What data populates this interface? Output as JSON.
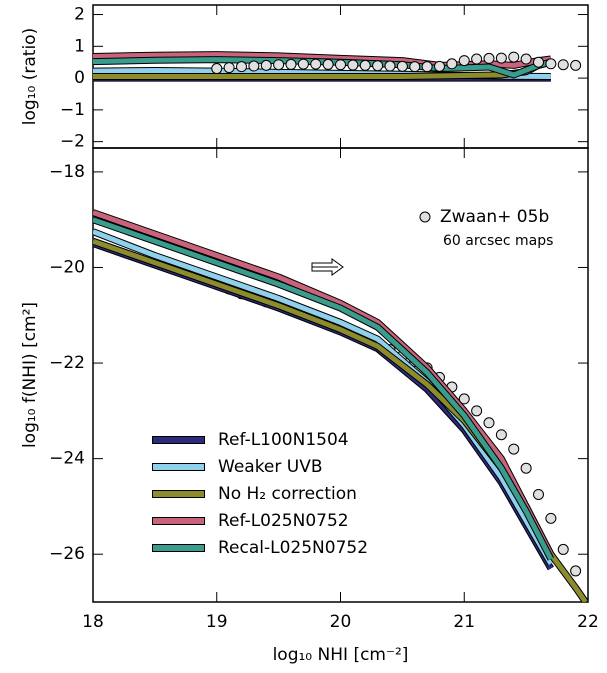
{
  "chart_data": [
    {
      "type": "line",
      "ylabel": "log₁₀ (ratio)",
      "xlim": [
        18,
        22
      ],
      "xticks": [
        18,
        19,
        20,
        21,
        22
      ],
      "ylim": [
        -2.2,
        2.3
      ],
      "yticks": [
        {
          "value": -2,
          "label": "−2"
        },
        {
          "value": -1,
          "label": "−1"
        },
        0,
        1,
        2
      ],
      "series": [
        {
          "color": "#2b2a7c",
          "x": [
            18,
            19,
            20,
            21,
            21.7
          ],
          "values": [
            0,
            0,
            0,
            0,
            0
          ]
        },
        {
          "color": "#8fd0ec",
          "x": [
            18,
            18.5,
            19,
            19.5,
            20,
            20.5,
            21,
            21.3,
            21.7
          ],
          "values": [
            0.22,
            0.24,
            0.22,
            0.18,
            0.15,
            0.12,
            0.08,
            0.06,
            0.05
          ]
        },
        {
          "color": "#8c8c2c",
          "x": [
            18,
            19,
            20,
            20.5,
            21,
            21.3,
            21.5,
            21.6,
            21.7
          ],
          "values": [
            0.05,
            0.05,
            0.05,
            0.05,
            0.08,
            0.1,
            0.2,
            0.4,
            0.5
          ]
        },
        {
          "color": "#c9637c",
          "x": [
            18,
            18.5,
            19,
            19.5,
            20,
            20.5,
            20.8,
            21,
            21.2,
            21.4,
            21.6,
            21.7
          ],
          "values": [
            0.68,
            0.72,
            0.74,
            0.7,
            0.62,
            0.55,
            0.4,
            0.42,
            0.45,
            0.4,
            0.55,
            0.6
          ]
        },
        {
          "color": "#3a9c8c",
          "x": [
            18,
            18.5,
            19,
            19.5,
            20,
            20.5,
            20.8,
            21,
            21.2,
            21.4,
            21.6,
            21.7
          ],
          "values": [
            0.52,
            0.56,
            0.58,
            0.55,
            0.5,
            0.42,
            0.3,
            0.32,
            0.35,
            0.1,
            0.4,
            0.5
          ]
        },
        {
          "color": "#e0e0e0",
          "marker": "circle",
          "x": [
            19,
            19.1,
            19.2,
            19.3,
            19.4,
            19.5,
            19.6,
            19.7,
            19.8,
            19.9,
            20,
            20.1,
            20.2,
            20.3,
            20.4,
            20.5,
            20.6,
            20.7,
            20.8,
            20.9,
            21,
            21.1,
            21.2,
            21.3,
            21.4,
            21.5,
            21.6,
            21.7,
            21.8,
            21.9
          ],
          "values": [
            0.3,
            0.33,
            0.36,
            0.38,
            0.4,
            0.42,
            0.43,
            0.44,
            0.44,
            0.43,
            0.42,
            0.41,
            0.4,
            0.39,
            0.38,
            0.37,
            0.36,
            0.36,
            0.37,
            0.45,
            0.55,
            0.6,
            0.62,
            0.63,
            0.66,
            0.6,
            0.5,
            0.45,
            0.42,
            0.4
          ]
        }
      ]
    },
    {
      "type": "line",
      "xlabel": "log₁₀ NHI [cm⁻²]",
      "ylabel": "log₁₀ f(NHI) [cm²]",
      "annotation": "60 arcsec maps",
      "legend": "lower left",
      "xlim": [
        18,
        22
      ],
      "xticks": [
        18,
        19,
        20,
        21,
        22
      ],
      "ylim": [
        -27,
        -17.5
      ],
      "yticks": [
        {
          "value": -26,
          "label": "−26"
        },
        {
          "value": -24,
          "label": "−24"
        },
        {
          "value": -22,
          "label": "−22"
        },
        {
          "value": -20,
          "label": "−20"
        },
        {
          "value": -18,
          "label": "−18"
        }
      ],
      "series": [
        {
          "name": "Zwaan+ 05b",
          "color": "#e0e0e0",
          "marker": "circle",
          "x": [
            19,
            19.1,
            19.2,
            19.3,
            19.4,
            19.5,
            19.6,
            19.7,
            19.8,
            19.9,
            20,
            20.1,
            20.2,
            20.3,
            20.4,
            20.5,
            20.6,
            20.7,
            20.8,
            20.9,
            21,
            21.1,
            21.2,
            21.3,
            21.4,
            21.5,
            21.6,
            21.7,
            21.8,
            21.9
          ],
          "values": [
            -20.35,
            -20.45,
            -20.55,
            -20.62,
            -20.72,
            -20.8,
            -20.9,
            -21.0,
            -21.1,
            -21.2,
            -21.3,
            -21.4,
            -21.5,
            -21.6,
            -21.72,
            -21.85,
            -21.97,
            -22.1,
            -22.3,
            -22.5,
            -22.75,
            -23.0,
            -23.25,
            -23.5,
            -23.8,
            -24.2,
            -24.75,
            -25.25,
            -25.9,
            -26.35
          ]
        },
        {
          "name": "Ref-L100N1504",
          "color": "#2b2a7c",
          "x": [
            18,
            18.5,
            19,
            19.5,
            20,
            20.3,
            20.7,
            21,
            21.3,
            21.5,
            21.7
          ],
          "values": [
            -19.5,
            -19.95,
            -20.4,
            -20.85,
            -21.35,
            -21.7,
            -22.55,
            -23.4,
            -24.5,
            -25.4,
            -26.3
          ]
        },
        {
          "name": "Weaker UVB",
          "color": "#8fd0ec",
          "x": [
            18,
            18.5,
            19,
            19.5,
            20,
            20.3,
            20.7,
            21,
            21.3,
            21.5,
            21.7
          ],
          "values": [
            -19.25,
            -19.75,
            -20.2,
            -20.65,
            -21.15,
            -21.5,
            -22.4,
            -23.3,
            -24.4,
            -25.3,
            -26.2
          ]
        },
        {
          "name": "No H₂ correction",
          "color": "#8c8c2c",
          "x": [
            18,
            18.5,
            19,
            19.5,
            20,
            20.3,
            20.7,
            21,
            21.3,
            21.5,
            21.7,
            21.9,
            21.98
          ],
          "values": [
            -19.45,
            -19.9,
            -20.35,
            -20.8,
            -21.3,
            -21.65,
            -22.45,
            -23.2,
            -24.2,
            -25.0,
            -26.0,
            -26.7,
            -27
          ]
        },
        {
          "name": "Ref-L025N0752",
          "color": "#c9637c",
          "x": [
            18,
            18.5,
            19,
            19.5,
            20,
            20.3,
            20.7,
            21,
            21.3,
            21.5,
            21.7
          ],
          "values": [
            -18.85,
            -19.3,
            -19.75,
            -20.2,
            -20.75,
            -21.15,
            -22.1,
            -23.0,
            -24.0,
            -25.0,
            -26.0
          ]
        },
        {
          "name": "Recal-L025N0752",
          "color": "#3a9c8c",
          "x": [
            18,
            18.5,
            19,
            19.5,
            20,
            20.3,
            20.7,
            21,
            21.3,
            21.5,
            21.7
          ],
          "values": [
            -19.0,
            -19.45,
            -19.9,
            -20.35,
            -20.85,
            -21.25,
            -22.2,
            -23.1,
            -24.2,
            -25.1,
            -26.1
          ]
        }
      ]
    }
  ]
}
